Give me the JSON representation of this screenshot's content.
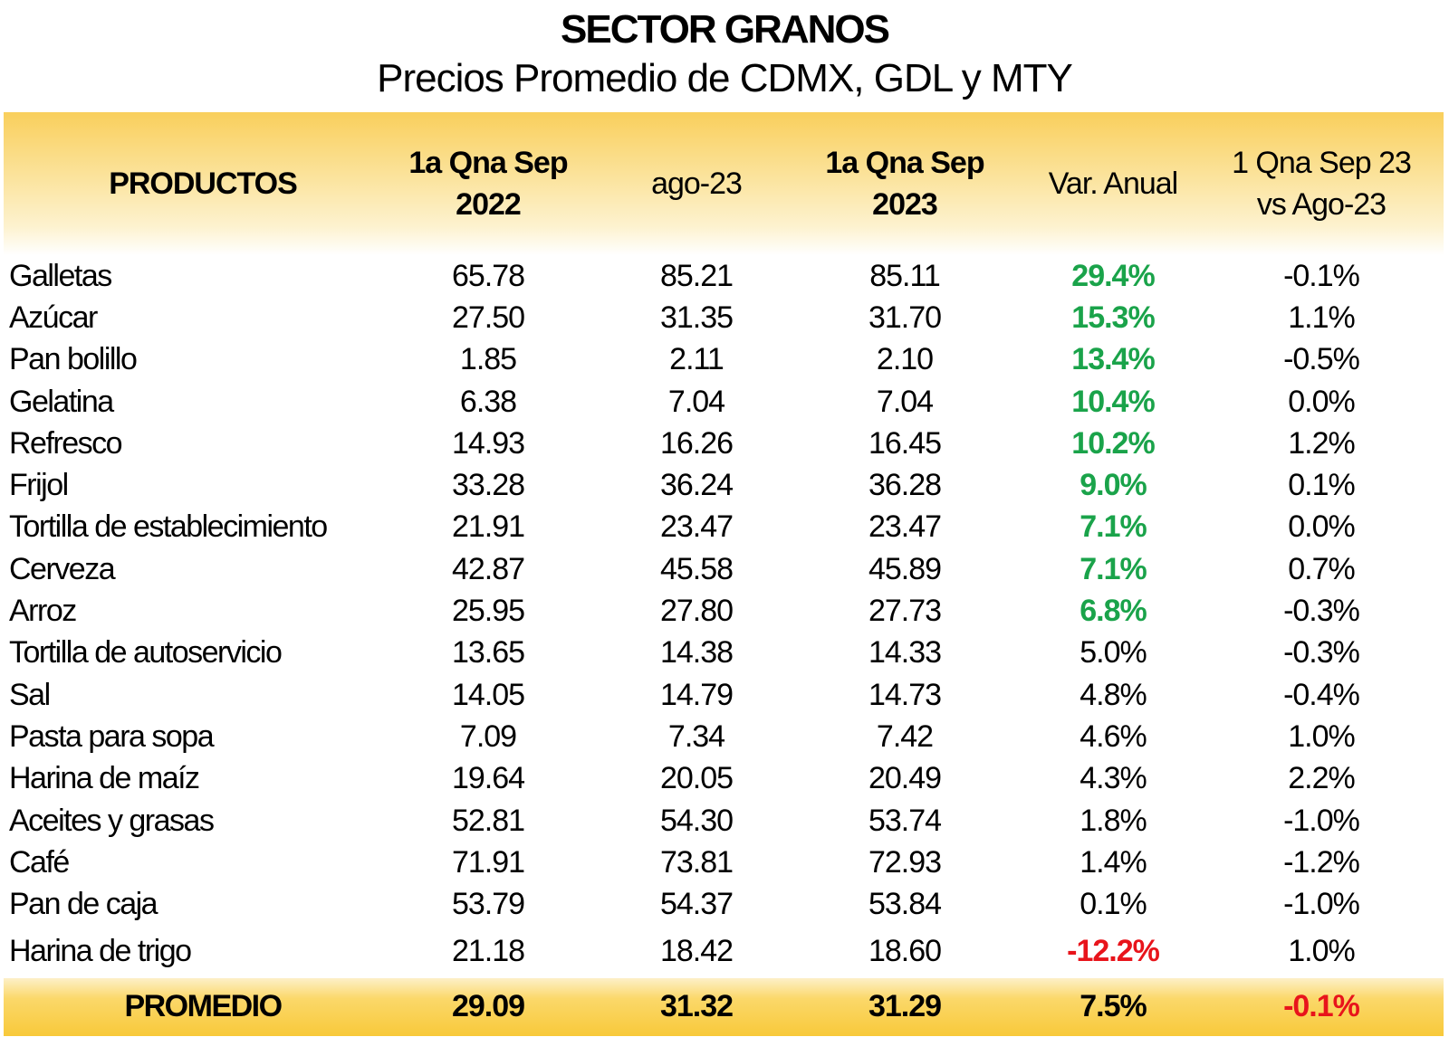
{
  "title": "SECTOR GRANOS",
  "subtitle": "Precios Promedio de CDMX, GDL y MTY",
  "header": {
    "productos": "PRODUCTOS",
    "col1_line1": "1a Qna Sep",
    "col1_line2": "2022",
    "col2": "ago-23",
    "col3_line1": "1a Qna Sep",
    "col3_line2": "2023",
    "col4": "Var. Anual",
    "col5_line1": "1 Qna Sep 23",
    "col5_line2": "vs Ago-23"
  },
  "rows": [
    {
      "name": "Galletas",
      "v2022": "65.78",
      "ago23": "85.21",
      "v2023": "85.11",
      "var": "29.4%",
      "var_color": "green",
      "vs": "-0.1%"
    },
    {
      "name": "Azúcar",
      "v2022": "27.50",
      "ago23": "31.35",
      "v2023": "31.70",
      "var": "15.3%",
      "var_color": "green",
      "vs": "1.1%"
    },
    {
      "name": "Pan bolillo",
      "v2022": "1.85",
      "ago23": "2.11",
      "v2023": "2.10",
      "var": "13.4%",
      "var_color": "green",
      "vs": "-0.5%"
    },
    {
      "name": "Gelatina",
      "v2022": "6.38",
      "ago23": "7.04",
      "v2023": "7.04",
      "var": "10.4%",
      "var_color": "green",
      "vs": "0.0%"
    },
    {
      "name": "Refresco",
      "v2022": "14.93",
      "ago23": "16.26",
      "v2023": "16.45",
      "var": "10.2%",
      "var_color": "green",
      "vs": "1.2%"
    },
    {
      "name": "Frijol",
      "v2022": "33.28",
      "ago23": "36.24",
      "v2023": "36.28",
      "var": "9.0%",
      "var_color": "green",
      "vs": "0.1%"
    },
    {
      "name": "Tortilla de establecimiento",
      "v2022": "21.91",
      "ago23": "23.47",
      "v2023": "23.47",
      "var": "7.1%",
      "var_color": "green",
      "vs": "0.0%"
    },
    {
      "name": "Cerveza",
      "v2022": "42.87",
      "ago23": "45.58",
      "v2023": "45.89",
      "var": "7.1%",
      "var_color": "green",
      "vs": "0.7%"
    },
    {
      "name": "Arroz",
      "v2022": "25.95",
      "ago23": "27.80",
      "v2023": "27.73",
      "var": "6.8%",
      "var_color": "green",
      "vs": "-0.3%"
    },
    {
      "name": "Tortilla de autoservicio",
      "v2022": "13.65",
      "ago23": "14.38",
      "v2023": "14.33",
      "var": "5.0%",
      "var_color": "",
      "vs": "-0.3%"
    },
    {
      "name": "Sal",
      "v2022": "14.05",
      "ago23": "14.79",
      "v2023": "14.73",
      "var": "4.8%",
      "var_color": "",
      "vs": "-0.4%"
    },
    {
      "name": "Pasta para sopa",
      "v2022": "7.09",
      "ago23": "7.34",
      "v2023": "7.42",
      "var": "4.6%",
      "var_color": "",
      "vs": "1.0%"
    },
    {
      "name": "Harina de maíz",
      "v2022": "19.64",
      "ago23": "20.05",
      "v2023": "20.49",
      "var": "4.3%",
      "var_color": "",
      "vs": "2.2%"
    },
    {
      "name": "Aceites y grasas",
      "v2022": "52.81",
      "ago23": "54.30",
      "v2023": "53.74",
      "var": "1.8%",
      "var_color": "",
      "vs": "-1.0%"
    },
    {
      "name": "Café",
      "v2022": "71.91",
      "ago23": "73.81",
      "v2023": "72.93",
      "var": "1.4%",
      "var_color": "",
      "vs": "-1.2%"
    },
    {
      "name": "Pan de caja",
      "v2022": "53.79",
      "ago23": "54.37",
      "v2023": "53.84",
      "var": "0.1%",
      "var_color": "",
      "vs": "-1.0%"
    },
    {
      "name": "Harina de trigo",
      "v2022": "21.18",
      "ago23": "18.42",
      "v2023": "18.60",
      "var": "-12.2%",
      "var_color": "red",
      "vs": "1.0%"
    }
  ],
  "footer": {
    "label": "PROMEDIO",
    "v2022": "29.09",
    "ago23": "31.32",
    "v2023": "31.29",
    "var": "7.5%",
    "vs": "-0.1%",
    "vs_color": "red"
  },
  "colors": {
    "header_gold": "#f9cf5c",
    "positive_green": "#1aa34a",
    "negative_red": "#e8141b"
  }
}
